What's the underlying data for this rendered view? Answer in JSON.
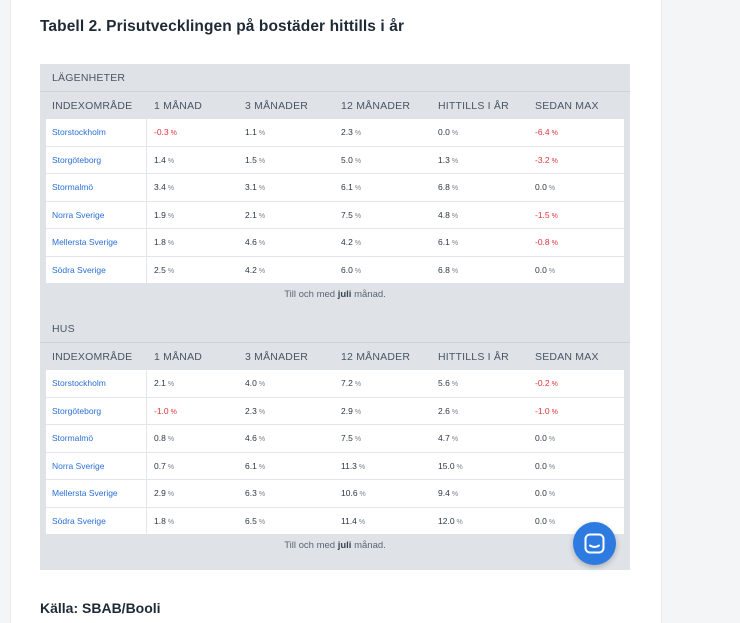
{
  "title": "Tabell 2. Prisutvecklingen på bostäder hittills i år",
  "columns": [
    "INDEXOMRÅDE",
    "1 MÅNAD",
    "3 MÅNADER",
    "12 MÅNADER",
    "HITTILLS I ÅR",
    "SEDAN MAX"
  ],
  "note": {
    "prefix": "Till och med ",
    "month": "juli",
    "suffix": " månad."
  },
  "sections": [
    {
      "label": "LÄGENHETER",
      "rows": [
        {
          "area": "Storstockholm",
          "m1": "-0.3",
          "m3": "1.1",
          "m12": "2.3",
          "ytd": "0.0",
          "max": "-6.4"
        },
        {
          "area": "Storgöteborg",
          "m1": "1.4",
          "m3": "1.5",
          "m12": "5.0",
          "ytd": "1.3",
          "max": "-3.2"
        },
        {
          "area": "Stormalmö",
          "m1": "3.4",
          "m3": "3.1",
          "m12": "6.1",
          "ytd": "6.8",
          "max": "0.0"
        },
        {
          "area": "Norra Sverige",
          "m1": "1.9",
          "m3": "2.1",
          "m12": "7.5",
          "ytd": "4.8",
          "max": "-1.5"
        },
        {
          "area": "Mellersta Sverige",
          "m1": "1.8",
          "m3": "4.6",
          "m12": "4.2",
          "ytd": "6.1",
          "max": "-0.8"
        },
        {
          "area": "Södra Sverige",
          "m1": "2.5",
          "m3": "4.2",
          "m12": "6.0",
          "ytd": "6.8",
          "max": "0.0"
        }
      ]
    },
    {
      "label": "HUS",
      "rows": [
        {
          "area": "Storstockholm",
          "m1": "2.1",
          "m3": "4.0",
          "m12": "7.2",
          "ytd": "5.6",
          "max": "-0.2"
        },
        {
          "area": "Storgöteborg",
          "m1": "-1.0",
          "m3": "2.3",
          "m12": "2.9",
          "ytd": "2.6",
          "max": "-1.0"
        },
        {
          "area": "Stormalmö",
          "m1": "0.8",
          "m3": "4.6",
          "m12": "7.5",
          "ytd": "4.7",
          "max": "0.0"
        },
        {
          "area": "Norra Sverige",
          "m1": "0.7",
          "m3": "6.1",
          "m12": "11.3",
          "ytd": "15.0",
          "max": "0.0"
        },
        {
          "area": "Mellersta Sverige",
          "m1": "2.9",
          "m3": "6.3",
          "m12": "10.6",
          "ytd": "9.4",
          "max": "0.0"
        },
        {
          "area": "Södra Sverige",
          "m1": "1.8",
          "m3": "6.5",
          "m12": "11.4",
          "ytd": "12.0",
          "max": "0.0"
        }
      ]
    }
  ],
  "percent_sign": "%",
  "source": "Källa: SBAB/Booli",
  "colors": {
    "negative": "#e0333a",
    "link": "#2a6fd6",
    "chat_button": "#2d7be0"
  },
  "chat_icon": "chat-bubble-icon"
}
